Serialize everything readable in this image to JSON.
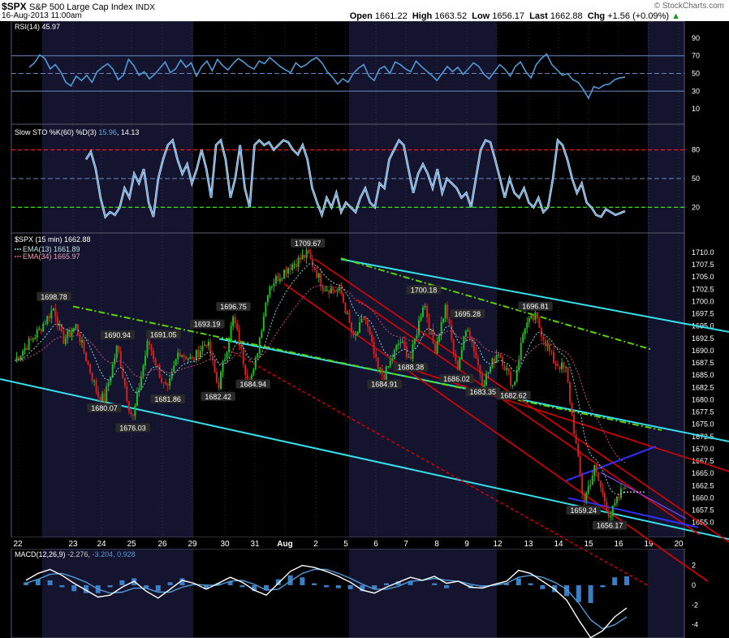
{
  "header": {
    "symbol": "$SPX",
    "name": "S&P 500 Large Cap Index",
    "exchange": "INDX",
    "date": "16-Aug-2013 11:00am",
    "watermark": "© StockCharts.com",
    "open_label": "Open",
    "open": "1661.22",
    "high_label": "High",
    "high": "1663.52",
    "low_label": "Low",
    "low": "1656.17",
    "last_label": "Last",
    "last": "1662.88",
    "chg_label": "Chg",
    "chg": "+1.56 (+0.09%)"
  },
  "colors": {
    "bg": "#000000",
    "shade": "#14142e",
    "grid": "#5a5a6e",
    "text": "#ffffff",
    "up": "#1fbe1f",
    "down": "#d22020",
    "ema13": "#7ad6d6",
    "ema34": "#b0406a",
    "indicator": "#4f9bd8",
    "cyan": "#35e0ec",
    "red": "#e00000",
    "lime": "#5ad300",
    "blue": "#3030ff"
  },
  "chart_data": [
    {
      "type": "line",
      "name": "RSI",
      "legend": "RSI(14) 45.97",
      "yticks": [
        10,
        30,
        50,
        70,
        90
      ],
      "ylim": [
        0,
        100
      ],
      "levels": [
        30,
        50,
        70
      ],
      "values": [
        57,
        62,
        71,
        67,
        55,
        60,
        52,
        40,
        36,
        47,
        42,
        48,
        40,
        52,
        57,
        61,
        55,
        43,
        48,
        66,
        59,
        48,
        52,
        44,
        49,
        56,
        63,
        51,
        55,
        65,
        57,
        62,
        47,
        58,
        64,
        53,
        66,
        59,
        54,
        61,
        67,
        63,
        58,
        55,
        64,
        61,
        68,
        63,
        58,
        54,
        51,
        62,
        57,
        60,
        65,
        68,
        62,
        52,
        46,
        38,
        44,
        40,
        50,
        56,
        60,
        47,
        42,
        55,
        58,
        50,
        63,
        60,
        55,
        52,
        64,
        58,
        53,
        48,
        42,
        50,
        58,
        52,
        57,
        49,
        55,
        62,
        58,
        49,
        44,
        52,
        60,
        55,
        47,
        58,
        63,
        52,
        45,
        60,
        67,
        72,
        60,
        54,
        48,
        50,
        43,
        40,
        32,
        22,
        35,
        33,
        37,
        38,
        43,
        45,
        46
      ]
    },
    {
      "type": "line",
      "name": "Slow STO",
      "legend": "Slow STO %K(60) %D(3)",
      "legend_k": "15.96",
      "legend_d": "14.13",
      "yticks": [
        20,
        50,
        80
      ],
      "ylim": [
        0,
        100
      ],
      "levels": [
        20,
        50,
        80
      ],
      "values": [
        70,
        78,
        60,
        30,
        10,
        15,
        12,
        20,
        40,
        30,
        55,
        45,
        60,
        25,
        10,
        50,
        70,
        85,
        90,
        70,
        55,
        65,
        45,
        60,
        80,
        60,
        30,
        85,
        90,
        70,
        30,
        50,
        85,
        40,
        20,
        85,
        90,
        85,
        88,
        80,
        85,
        90,
        88,
        80,
        75,
        85,
        70,
        40,
        25,
        12,
        30,
        20,
        35,
        15,
        25,
        20,
        15,
        30,
        40,
        25,
        20,
        45,
        40,
        70,
        80,
        90,
        85,
        60,
        35,
        55,
        65,
        55,
        40,
        60,
        35,
        50,
        45,
        40,
        30,
        35,
        20,
        50,
        80,
        90,
        88,
        70,
        50,
        30,
        50,
        35,
        30,
        40,
        25,
        20,
        30,
        15,
        20,
        50,
        90,
        85,
        70,
        50,
        35,
        45,
        25,
        20,
        12,
        10,
        18,
        15,
        12,
        14,
        16
      ]
    },
    {
      "type": "candlestick",
      "name": "$SPX",
      "legend": "$SPX (15 min) 1662.88",
      "ema13_label": "EMA(13) 1661.89",
      "ema34_label": "EMA(34) 1665.97",
      "ylim": [
        1652.8,
        1712.3
      ],
      "yticks": [
        1655.0,
        1657.5,
        1660.0,
        1662.5,
        1665.0,
        1667.5,
        1670.0,
        1672.5,
        1675.0,
        1677.5,
        1680.0,
        1682.5,
        1685.0,
        1687.5,
        1690.0,
        1692.5,
        1695.0,
        1697.5,
        1700.0,
        1702.5,
        1705.0,
        1707.5,
        1710.0
      ],
      "xticks": [
        "22",
        "23",
        "24",
        "25",
        "26",
        "29",
        "30",
        "31",
        "Aug",
        "2",
        "5",
        "6",
        "7",
        "8",
        "9",
        "12",
        "13",
        "14",
        "15",
        "16",
        "19",
        "20"
      ],
      "price_path": [
        [
          0,
          1688
        ],
        [
          22,
          1694
        ],
        [
          36,
          1698.78
        ],
        [
          44,
          1692
        ],
        [
          56,
          1695
        ],
        [
          66,
          1688
        ],
        [
          76,
          1681
        ],
        [
          82,
          1680.07
        ],
        [
          94,
          1691
        ],
        [
          104,
          1679
        ],
        [
          108,
          1676.03
        ],
        [
          122,
          1692
        ],
        [
          136,
          1683
        ],
        [
          140,
          1681.86
        ],
        [
          150,
          1690
        ],
        [
          162,
          1688
        ],
        [
          176,
          1692
        ],
        [
          186,
          1682.42
        ],
        [
          200,
          1696.75
        ],
        [
          212,
          1685
        ],
        [
          218,
          1684.94
        ],
        [
          232,
          1703
        ],
        [
          250,
          1707
        ],
        [
          268,
          1709.67
        ],
        [
          282,
          1703
        ],
        [
          298,
          1702
        ],
        [
          310,
          1692
        ],
        [
          320,
          1697
        ],
        [
          332,
          1686
        ],
        [
          338,
          1684.91
        ],
        [
          352,
          1692
        ],
        [
          362,
          1688.38
        ],
        [
          374,
          1700.18
        ],
        [
          384,
          1690
        ],
        [
          394,
          1699
        ],
        [
          404,
          1686.02
        ],
        [
          414,
          1695.28
        ],
        [
          428,
          1683.35
        ],
        [
          442,
          1690
        ],
        [
          456,
          1682.62
        ],
        [
          466,
          1695
        ],
        [
          476,
          1696.81
        ],
        [
          492,
          1688
        ],
        [
          504,
          1686
        ],
        [
          520,
          1659.24
        ],
        [
          530,
          1666
        ],
        [
          544,
          1656.17
        ],
        [
          558,
          1662.88
        ]
      ],
      "labels": [
        {
          "x": 36,
          "v": 1698.78,
          "text": "1698.78"
        },
        {
          "x": 82,
          "v": 1680.07,
          "text": "1680.07"
        },
        {
          "x": 108,
          "v": 1676.03,
          "text": "1676.03"
        },
        {
          "x": 94,
          "v": 1690.94,
          "text": "1690.94"
        },
        {
          "x": 140,
          "v": 1681.86,
          "text": "1681.86"
        },
        {
          "x": 136,
          "v": 1691.05,
          "text": "1691.05"
        },
        {
          "x": 176,
          "v": 1693.19,
          "text": "1693.19"
        },
        {
          "x": 186,
          "v": 1682.42,
          "text": "1682.42"
        },
        {
          "x": 200,
          "v": 1696.75,
          "text": "1696.75"
        },
        {
          "x": 218,
          "v": 1684.94,
          "text": "1684.94"
        },
        {
          "x": 268,
          "v": 1709.67,
          "text": "1709.67"
        },
        {
          "x": 338,
          "v": 1684.91,
          "text": "1684.91"
        },
        {
          "x": 362,
          "v": 1688.38,
          "text": "1688.38"
        },
        {
          "x": 374,
          "v": 1700.18,
          "text": "1700.18"
        },
        {
          "x": 404,
          "v": 1686.02,
          "text": "1686.02"
        },
        {
          "x": 414,
          "v": 1695.28,
          "text": "1695.28"
        },
        {
          "x": 428,
          "v": 1683.35,
          "text": "1683.35"
        },
        {
          "x": 456,
          "v": 1682.62,
          "text": "1682.62"
        },
        {
          "x": 476,
          "v": 1696.81,
          "text": "1696.81"
        },
        {
          "x": 520,
          "v": 1659.24,
          "text": "1659.24"
        },
        {
          "x": 544,
          "v": 1656.17,
          "text": "1656.17"
        }
      ]
    },
    {
      "type": "line",
      "name": "MACD",
      "legend": "MACD(12,26,9)",
      "legend_macd": "-2.276",
      "legend_signal": "-3.204",
      "legend_hist": "0.928",
      "yticks": [
        -4,
        -2,
        0,
        2
      ],
      "ylim": [
        -5.5,
        3.2
      ],
      "macd": [
        0.5,
        1.2,
        1.6,
        1.0,
        0.2,
        -0.5,
        -1.2,
        -1.0,
        -0.2,
        0.4,
        -0.6,
        -1.3,
        -0.4,
        0.5,
        0.2,
        -0.4,
        0.2,
        0.8,
        0.3,
        -0.5,
        -1.0,
        0.2,
        1.4,
        2.0,
        1.8,
        1.4,
        0.9,
        0.3,
        -0.5,
        -0.8,
        -0.2,
        0.3,
        0.8,
        0.5,
        0.9,
        0.2,
        0.4,
        -0.2,
        -0.3,
        0.1,
        0.4,
        1.5,
        1.2,
        0.4,
        -0.4,
        -1.5,
        -3.5,
        -5.3,
        -4.6,
        -3.2,
        -2.3
      ],
      "signal": [
        0.2,
        0.6,
        1.1,
        1.2,
        0.8,
        0.3,
        -0.4,
        -0.8,
        -0.7,
        -0.3,
        -0.3,
        -0.7,
        -0.7,
        -0.2,
        0.1,
        0.0,
        0.0,
        0.4,
        0.5,
        0.1,
        -0.5,
        -0.4,
        0.4,
        1.2,
        1.6,
        1.6,
        1.2,
        0.7,
        0.1,
        -0.4,
        -0.4,
        -0.1,
        0.4,
        0.5,
        0.7,
        0.5,
        0.4,
        0.1,
        -0.1,
        0.0,
        0.2,
        0.8,
        1.0,
        0.8,
        0.3,
        -0.4,
        -1.8,
        -3.5,
        -4.4,
        -4.0,
        -3.2
      ]
    }
  ],
  "xtick_positions": [
    22,
    23,
    24,
    25,
    26,
    29,
    30,
    31,
    32,
    33,
    34,
    35,
    36,
    37,
    38,
    39,
    40,
    41,
    42,
    43,
    44,
    45
  ]
}
